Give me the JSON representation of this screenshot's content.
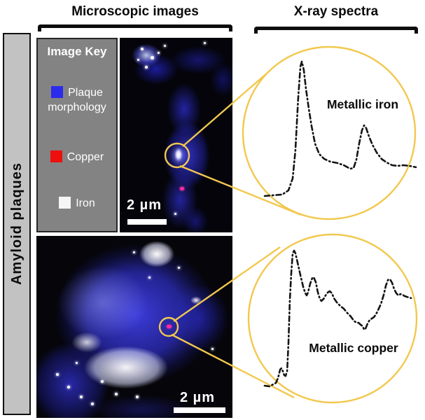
{
  "figure": {
    "row_label": "Amyloid plaques",
    "col_headers": {
      "microscopy": "Microscopic images",
      "spectra": "X-ray spectra"
    }
  },
  "image_key": {
    "title": "Image Key",
    "items": [
      {
        "label": "Plaque morphology",
        "color": "#2b2bee"
      },
      {
        "label": "Copper",
        "color": "#ee0f0f"
      },
      {
        "label": "Iron",
        "color": "#f5f5f5"
      }
    ]
  },
  "micrographs": {
    "top": {
      "scale_bar": "2 µm"
    },
    "bottom": {
      "scale_bar": "2 µm"
    }
  },
  "colors": {
    "accent_yellow": "#f2c84e",
    "spectrum_line": "#141414",
    "key_panel_gray": "#838383",
    "sidebar_gray": "#c2c2c2",
    "magenta_spot": "#ff2da0"
  },
  "chart_data": [
    {
      "id": "iron",
      "type": "line",
      "title": "Metallic iron",
      "line_style": "dash-dot",
      "axes_shown": false,
      "points_normalized": [
        [
          0.027,
          0.005
        ],
        [
          0.14,
          0.016
        ],
        [
          0.18,
          0.047
        ],
        [
          0.207,
          0.135
        ],
        [
          0.225,
          0.342
        ],
        [
          0.243,
          0.731
        ],
        [
          0.257,
          0.964
        ],
        [
          0.266,
          1.0
        ],
        [
          0.279,
          0.938
        ],
        [
          0.293,
          0.798
        ],
        [
          0.311,
          0.653
        ],
        [
          0.329,
          0.523
        ],
        [
          0.351,
          0.394
        ],
        [
          0.378,
          0.316
        ],
        [
          0.41,
          0.28
        ],
        [
          0.45,
          0.259
        ],
        [
          0.495,
          0.249
        ],
        [
          0.536,
          0.233
        ],
        [
          0.577,
          0.207
        ],
        [
          0.599,
          0.212
        ],
        [
          0.617,
          0.275
        ],
        [
          0.635,
          0.394
        ],
        [
          0.653,
          0.492
        ],
        [
          0.667,
          0.528
        ],
        [
          0.68,
          0.508
        ],
        [
          0.698,
          0.446
        ],
        [
          0.721,
          0.383
        ],
        [
          0.748,
          0.326
        ],
        [
          0.779,
          0.28
        ],
        [
          0.811,
          0.254
        ],
        [
          0.847,
          0.233
        ],
        [
          0.883,
          0.228
        ],
        [
          0.919,
          0.233
        ],
        [
          0.959,
          0.228
        ],
        [
          1.0,
          0.218
        ]
      ]
    },
    {
      "id": "copper",
      "type": "line",
      "title": "Metallic copper",
      "line_style": "dash-dot",
      "axes_shown": false,
      "points_normalized": [
        [
          0.009,
          0.005
        ],
        [
          0.042,
          0.0
        ],
        [
          0.066,
          0.015
        ],
        [
          0.085,
          0.026
        ],
        [
          0.099,
          0.062
        ],
        [
          0.113,
          0.124
        ],
        [
          0.122,
          0.134
        ],
        [
          0.131,
          0.113
        ],
        [
          0.141,
          0.082
        ],
        [
          0.15,
          0.077
        ],
        [
          0.16,
          0.113
        ],
        [
          0.169,
          0.32
        ],
        [
          0.178,
          0.629
        ],
        [
          0.188,
          0.835
        ],
        [
          0.197,
          0.979
        ],
        [
          0.207,
          1.0
        ],
        [
          0.216,
          0.979
        ],
        [
          0.23,
          0.912
        ],
        [
          0.249,
          0.82
        ],
        [
          0.268,
          0.732
        ],
        [
          0.282,
          0.686
        ],
        [
          0.291,
          0.67
        ],
        [
          0.3,
          0.691
        ],
        [
          0.315,
          0.758
        ],
        [
          0.329,
          0.799
        ],
        [
          0.338,
          0.804
        ],
        [
          0.352,
          0.768
        ],
        [
          0.366,
          0.691
        ],
        [
          0.38,
          0.644
        ],
        [
          0.39,
          0.629
        ],
        [
          0.404,
          0.644
        ],
        [
          0.418,
          0.67
        ],
        [
          0.432,
          0.691
        ],
        [
          0.446,
          0.701
        ],
        [
          0.46,
          0.686
        ],
        [
          0.474,
          0.649
        ],
        [
          0.493,
          0.619
        ],
        [
          0.516,
          0.593
        ],
        [
          0.54,
          0.572
        ],
        [
          0.563,
          0.541
        ],
        [
          0.587,
          0.515
        ],
        [
          0.606,
          0.485
        ],
        [
          0.624,
          0.469
        ],
        [
          0.638,
          0.469
        ],
        [
          0.653,
          0.454
        ],
        [
          0.667,
          0.443
        ],
        [
          0.676,
          0.418
        ],
        [
          0.685,
          0.423
        ],
        [
          0.7,
          0.464
        ],
        [
          0.714,
          0.49
        ],
        [
          0.728,
          0.5
        ],
        [
          0.742,
          0.51
        ],
        [
          0.756,
          0.531
        ],
        [
          0.77,
          0.562
        ],
        [
          0.789,
          0.608
        ],
        [
          0.808,
          0.675
        ],
        [
          0.822,
          0.742
        ],
        [
          0.836,
          0.784
        ],
        [
          0.85,
          0.789
        ],
        [
          0.864,
          0.763
        ],
        [
          0.878,
          0.716
        ],
        [
          0.892,
          0.686
        ],
        [
          0.906,
          0.67
        ],
        [
          0.92,
          0.68
        ],
        [
          0.934,
          0.675
        ],
        [
          0.948,
          0.665
        ],
        [
          0.962,
          0.66
        ],
        [
          0.977,
          0.655
        ],
        [
          0.991,
          0.65
        ]
      ]
    }
  ]
}
